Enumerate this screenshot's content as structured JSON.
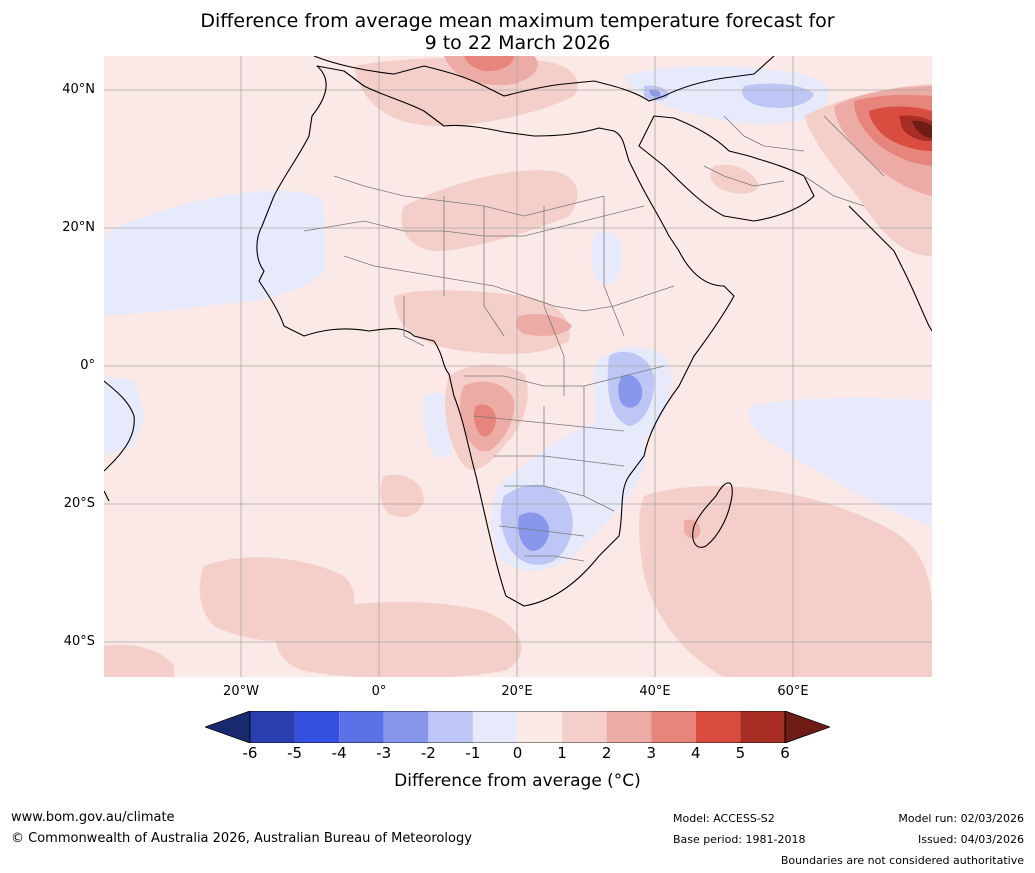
{
  "title": {
    "line1": "Difference from average mean maximum temperature forecast for",
    "line2": "9 to 22 March 2026"
  },
  "map": {
    "region": "Africa",
    "lat_labels": [
      "40°N",
      "20°N",
      "0°",
      "20°S",
      "40°S"
    ],
    "lon_labels": [
      "20°W",
      "0°",
      "20°E",
      "40°E",
      "60°E"
    ]
  },
  "colorbar": {
    "ticks": [
      "-6",
      "-5",
      "-4",
      "-3",
      "-2",
      "-1",
      "0",
      "1",
      "2",
      "3",
      "4",
      "5",
      "6"
    ],
    "colors": [
      "#1a2a6e",
      "#2a3fae",
      "#3550e0",
      "#5a72e6",
      "#8697ec",
      "#bec6f5",
      "#e7eafb",
      "#fbe9e7",
      "#f4cfca",
      "#ecaba4",
      "#e5857c",
      "#d94c40",
      "#a82d24",
      "#6e1c16"
    ],
    "label": "Difference from average (°C)"
  },
  "footer": {
    "url": "www.bom.gov.au/climate",
    "copyright": "© Commonwealth of Australia 2026, Australian Bureau of Meteorology",
    "model": "Model: ACCESS-S2",
    "base_period": "Base period: 1981-2018",
    "model_run": "Model run: 02/03/2026",
    "issued": "Issued: 04/03/2026",
    "disclaimer": "Boundaries are not considered authoritative"
  }
}
